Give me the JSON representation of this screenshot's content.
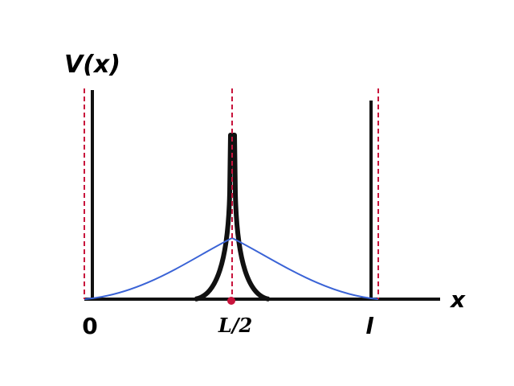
{
  "labels": {
    "y_axis": "V(x)",
    "x_axis": "x",
    "origin": "0",
    "midpoint": "L/2",
    "end": "l"
  }
}
